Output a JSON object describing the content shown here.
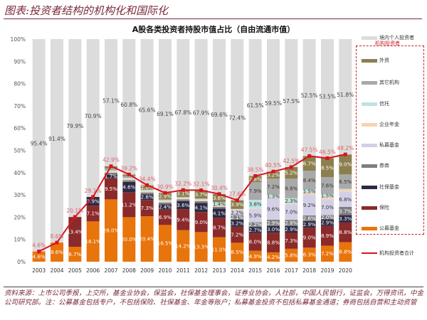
{
  "header": {
    "title": "图表:投资者结构的机构化和国际化"
  },
  "footnote": "资料来源：上市公司季报，上交所，基金业协会，保监会，社保基金理事会，证券业协会，人社部，中国人民银行，证监会，万得资讯，中金公司研究部。注：公募基金包括专户，不包括保险、社保基金、年金等账户；私募基金投资不包括私募基金通道；券商包括自营和主动资管",
  "chart_data": {
    "type": "bar",
    "stacked": true,
    "title": "A股各类投资者持股市值占比（自由流通市值）",
    "categories": [
      "2003",
      "2004",
      "2005",
      "2006",
      "2007",
      "2008",
      "2009",
      "2010",
      "2011",
      "2012",
      "2013",
      "2014",
      "2015",
      "2016",
      "2017",
      "2018",
      "2019",
      "2020"
    ],
    "ylim": [
      0,
      100
    ],
    "yticks": [
      "0%",
      "10%",
      "20%",
      "30%",
      "40%",
      "50%",
      "60%",
      "70%",
      "80%",
      "90%",
      "100%"
    ],
    "legend_position": "right",
    "legend_group_label": "机构投资者",
    "series": [
      {
        "name": "公募基金",
        "color": "#E8740C",
        "values": [
          4.6,
          8.6,
          6.7,
          18.1,
          28.0,
          20.0,
          20.4,
          16.5,
          14.2,
          13.3,
          11.0,
          8.5,
          4.9,
          4.2,
          5.8,
          6.3,
          7.2,
          8.8
        ]
      },
      {
        "name": "保险",
        "color": "#8B2A2A",
        "values": [
          0,
          0,
          13.4,
          7.1,
          9.5,
          11.2,
          7.3,
          6.9,
          9.4,
          9.0,
          8.7,
          7.2,
          8.0,
          8.8,
          7.3,
          9.0,
          8.9,
          8.8
        ]
      },
      {
        "name": "社保基金",
        "color": "#2B2A45",
        "values": [
          0,
          0,
          0,
          3.9,
          1.7,
          4.6,
          2.6,
          2.4,
          3.6,
          4.1,
          4.1,
          3.2,
          2.7,
          3.0,
          2.9,
          2.9,
          2.9,
          3.3
        ]
      },
      {
        "name": "券商",
        "color": "#7F7F7F",
        "values": [
          0,
          0,
          0,
          0,
          0.8,
          0.8,
          0.8,
          0.8,
          0.8,
          0.8,
          0.8,
          2.1,
          2.2,
          2.9,
          2.8,
          2.6,
          2.0,
          3.7
        ]
      },
      {
        "name": "私募基金",
        "color": "#D3CFE6",
        "values": [
          0,
          0,
          0,
          0,
          0,
          0,
          0,
          0,
          0,
          0,
          0,
          2.2,
          5.9,
          9.6,
          7.0,
          9.2,
          7.0,
          6.8
        ]
      },
      {
        "name": "企业年金",
        "color": "#F6D3B2",
        "values": [
          0,
          0,
          0,
          0,
          0.5,
          0.6,
          0.6,
          0.6,
          0.5,
          0.5,
          0.5,
          0.3,
          0.3,
          0.3,
          0.4,
          0.9,
          0.9,
          0.9
        ]
      },
      {
        "name": "信托",
        "color": "#BEE3E0",
        "values": [
          0,
          0,
          0,
          0,
          0.5,
          0.5,
          0.5,
          0.5,
          0.4,
          0.5,
          1.4,
          0.2,
          3.8,
          1.3,
          2.3,
          1.5,
          1.5,
          0.4
        ]
      },
      {
        "name": "其它机构",
        "color": "#A9A9A9",
        "values": [
          0,
          0,
          0,
          0,
          0.9,
          0.8,
          0.2,
          0.3,
          0.2,
          0.2,
          0.3,
          0,
          7.9,
          7.2,
          8.8,
          8.4,
          7.6,
          6.5
        ]
      },
      {
        "name": "外资",
        "color": "#8C7F4E",
        "values": [
          0,
          0,
          0,
          0,
          1.0,
          0.7,
          2.0,
          2.9,
          3.1,
          3.7,
          3.6,
          3.9,
          2.8,
          3.2,
          5.2,
          6.7,
          8.5,
          9.0
        ]
      },
      {
        "name": "境内个人投资者",
        "color": "#DCDCDC",
        "values": [
          95.4,
          91.4,
          79.9,
          70.9,
          57.1,
          60.8,
          65.6,
          69.1,
          67.8,
          67.9,
          69.6,
          72.4,
          61.5,
          59.5,
          57.5,
          52.5,
          53.5,
          51.8
        ]
      }
    ],
    "line": {
      "name": "机构投资者合计",
      "color": "#D9141E",
      "values": [
        4.6,
        8.6,
        20.1,
        29.1,
        42.9,
        39.2,
        34.4,
        30.9,
        32.2,
        32.1,
        30.4,
        27.6,
        38.5,
        40.5,
        42.5,
        47.5,
        46.5,
        48.2
      ]
    }
  }
}
